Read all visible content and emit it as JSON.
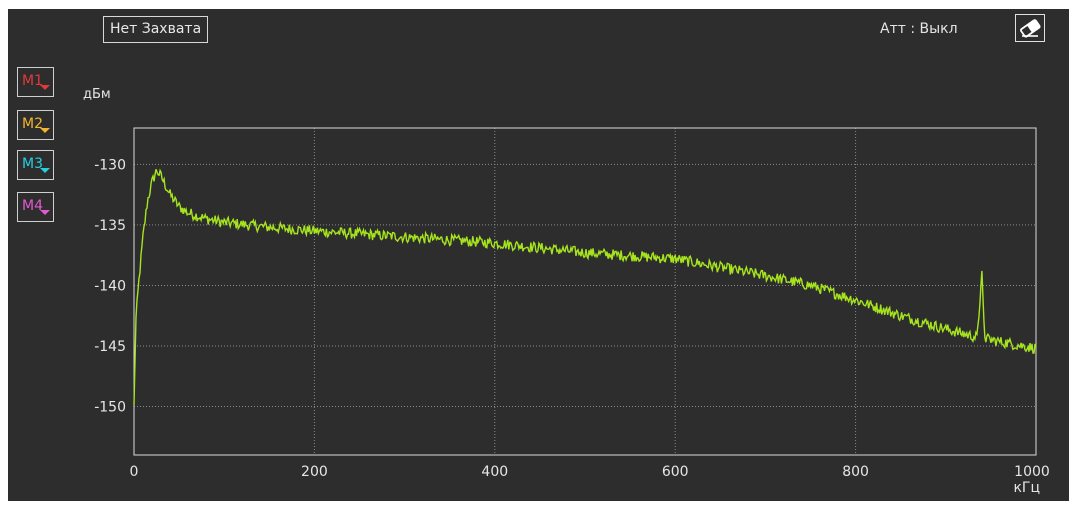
{
  "toolbar": {
    "capture_label": "Нет Захвата",
    "att_label": "Атт : Выкл",
    "clear_icon": "eraser-icon"
  },
  "markers": [
    {
      "label": "M1",
      "color": "#e03a3a"
    },
    {
      "label": "M2",
      "color": "#f2b630"
    },
    {
      "label": "M3",
      "color": "#27d0e0"
    },
    {
      "label": "M4",
      "color": "#e05ad2"
    }
  ],
  "colors": {
    "background": "#2d2d2d",
    "trace": "#a6e41e",
    "grid": "#8a8a8a",
    "axis": "#dcdcdc",
    "text": "#e6e6e6"
  },
  "chart_data": {
    "type": "line",
    "title": "",
    "xlabel": "",
    "ylabel": "",
    "x_unit": "кГц",
    "y_unit": "дБм",
    "xlim": [
      0,
      1000
    ],
    "ylim": [
      -154,
      -127
    ],
    "x_ticks": [
      0,
      200,
      400,
      600,
      800,
      1000
    ],
    "y_ticks": [
      -130,
      -135,
      -140,
      -145,
      -150
    ],
    "x_tick_labels": [
      "0",
      "200",
      "400",
      "600",
      "800",
      "1000"
    ],
    "y_tick_labels": [
      "-130",
      "-135",
      "-140",
      "-145",
      "-150"
    ],
    "grid": true,
    "legend": "none",
    "series": [
      {
        "x": [
          0,
          2,
          5,
          10,
          15,
          20,
          25,
          30,
          40,
          50,
          60,
          80,
          100,
          150,
          200,
          300,
          400,
          500,
          600,
          650,
          700,
          750,
          800,
          850,
          900,
          935,
          940,
          943,
          945,
          950,
          1000
        ],
        "y": [
          -150,
          -143,
          -140,
          -136,
          -133,
          -131.5,
          -130.5,
          -131,
          -132.5,
          -133.5,
          -134,
          -134.5,
          -134.8,
          -135.2,
          -135.5,
          -136,
          -136.5,
          -137.3,
          -137.8,
          -138.5,
          -139.2,
          -140,
          -141.2,
          -142.5,
          -143.6,
          -144.3,
          -138.8,
          -144.3,
          -144.4,
          -144.5,
          -145.2
        ]
      }
    ]
  }
}
